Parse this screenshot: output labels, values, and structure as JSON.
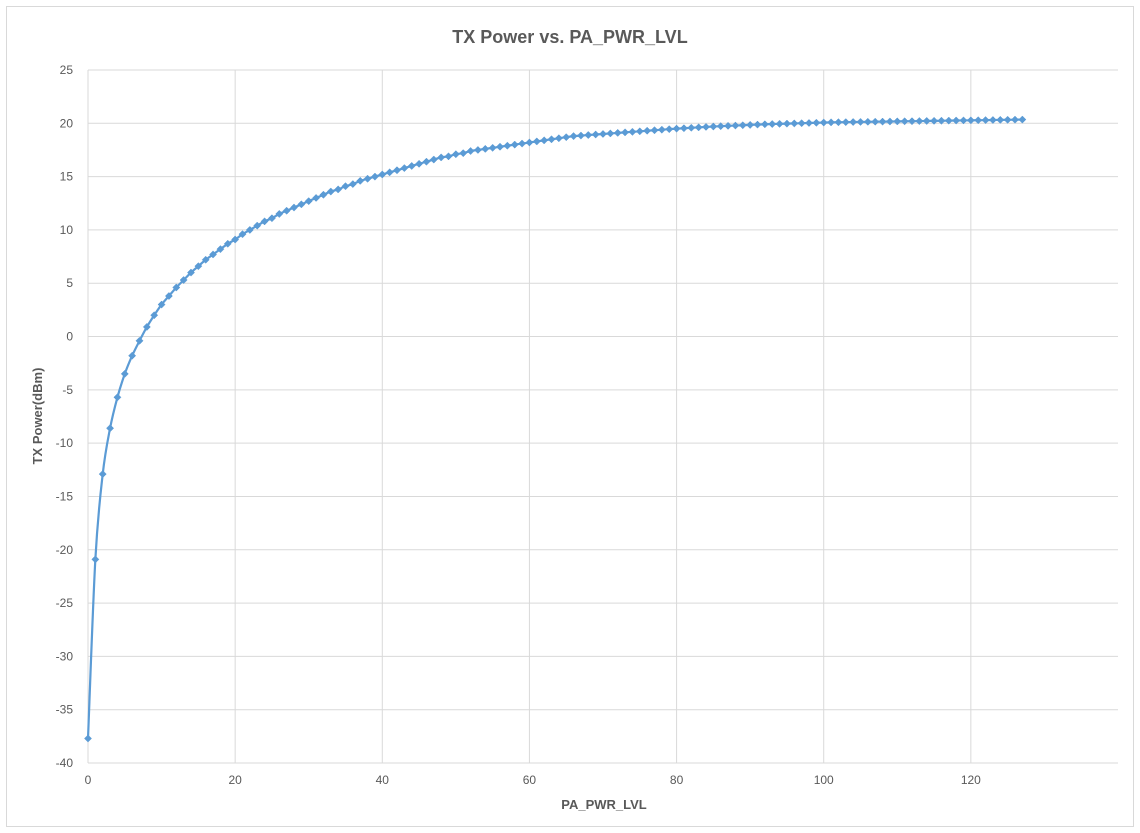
{
  "chart_data": {
    "type": "scatter",
    "title": "TX Power vs. PA_PWR_LVL",
    "xlabel": "PA_PWR_LVL",
    "ylabel": "TX Power(dBm)",
    "xlim": [
      0,
      140
    ],
    "ylim": [
      -40,
      25
    ],
    "xticks": [
      0,
      20,
      40,
      60,
      80,
      100,
      120
    ],
    "yticks": [
      25,
      20,
      15,
      10,
      5,
      0,
      -5,
      -10,
      -15,
      -20,
      -25,
      -30,
      -35,
      -40
    ],
    "grid": true,
    "legend": "none",
    "marker": "diamond",
    "line": "smooth",
    "series_color": "#5b9bd5",
    "grid_color": "#d9d9d9",
    "x": [
      0,
      1,
      2,
      3,
      4,
      5,
      6,
      7,
      8,
      9,
      10,
      11,
      12,
      13,
      14,
      15,
      16,
      17,
      18,
      19,
      20,
      21,
      22,
      23,
      24,
      25,
      26,
      27,
      28,
      29,
      30,
      31,
      32,
      33,
      34,
      35,
      36,
      37,
      38,
      39,
      40,
      41,
      42,
      43,
      44,
      45,
      46,
      47,
      48,
      49,
      50,
      51,
      52,
      53,
      54,
      55,
      56,
      57,
      58,
      59,
      60,
      61,
      62,
      63,
      64,
      65,
      66,
      67,
      68,
      69,
      70,
      71,
      72,
      73,
      74,
      75,
      76,
      77,
      78,
      79,
      80,
      81,
      82,
      83,
      84,
      85,
      86,
      87,
      88,
      89,
      90,
      91,
      92,
      93,
      94,
      95,
      96,
      97,
      98,
      99,
      100,
      101,
      102,
      103,
      104,
      105,
      106,
      107,
      108,
      109,
      110,
      111,
      112,
      113,
      114,
      115,
      116,
      117,
      118,
      119,
      120,
      121,
      122,
      123,
      124,
      125,
      126,
      127
    ],
    "y": [
      -37.7,
      -20.9,
      -12.9,
      -8.6,
      -5.7,
      -3.5,
      -1.8,
      -0.4,
      0.9,
      2.0,
      3.0,
      3.8,
      4.6,
      5.3,
      6.0,
      6.6,
      7.2,
      7.7,
      8.2,
      8.7,
      9.1,
      9.6,
      10.0,
      10.4,
      10.8,
      11.1,
      11.5,
      11.8,
      12.1,
      12.4,
      12.7,
      13.0,
      13.3,
      13.6,
      13.8,
      14.1,
      14.3,
      14.6,
      14.8,
      15.0,
      15.2,
      15.4,
      15.6,
      15.8,
      16.0,
      16.2,
      16.4,
      16.6,
      16.8,
      16.9,
      17.1,
      17.2,
      17.4,
      17.5,
      17.6,
      17.7,
      17.8,
      17.9,
      18.0,
      18.1,
      18.2,
      18.3,
      18.4,
      18.5,
      18.6,
      18.7,
      18.8,
      18.85,
      18.9,
      18.95,
      19.0,
      19.05,
      19.1,
      19.15,
      19.2,
      19.25,
      19.3,
      19.35,
      19.4,
      19.45,
      19.5,
      19.54,
      19.58,
      19.62,
      19.66,
      19.7,
      19.73,
      19.76,
      19.79,
      19.82,
      19.85,
      19.88,
      19.91,
      19.93,
      19.95,
      19.97,
      19.99,
      20.01,
      20.03,
      20.05,
      20.07,
      20.09,
      20.1,
      20.11,
      20.12,
      20.13,
      20.14,
      20.15,
      20.16,
      20.17,
      20.18,
      20.19,
      20.2,
      20.21,
      20.22,
      20.23,
      20.24,
      20.25,
      20.26,
      20.27,
      20.28,
      20.29,
      20.3,
      20.31,
      20.32,
      20.33,
      20.34,
      20.35
    ]
  }
}
